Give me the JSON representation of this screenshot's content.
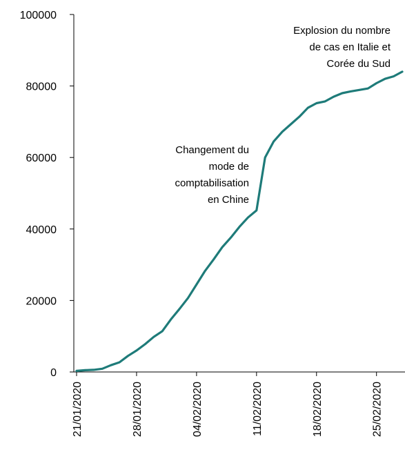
{
  "chart_data": {
    "type": "line",
    "title": "",
    "xlabel": "",
    "ylabel": "",
    "ylim": [
      0,
      100000
    ],
    "y_ticks": [
      0,
      20000,
      40000,
      60000,
      80000,
      100000
    ],
    "x_ticks": [
      "21/01/2020",
      "28/01/2020",
      "04/02/2020",
      "11/02/2020",
      "18/02/2020",
      "25/02/2020"
    ],
    "grid": false,
    "line_color": "#1e7b79",
    "series": [
      {
        "x": [
          "21/01/2020",
          "22/01/2020",
          "23/01/2020",
          "24/01/2020",
          "25/01/2020",
          "26/01/2020",
          "27/01/2020",
          "28/01/2020",
          "29/01/2020",
          "30/01/2020",
          "31/01/2020",
          "01/02/2020",
          "02/02/2020",
          "03/02/2020",
          "04/02/2020",
          "05/02/2020",
          "06/02/2020",
          "07/02/2020",
          "08/02/2020",
          "09/02/2020",
          "10/02/2020",
          "11/02/2020",
          "12/02/2020",
          "13/02/2020",
          "14/02/2020",
          "15/02/2020",
          "16/02/2020",
          "17/02/2020",
          "18/02/2020",
          "19/02/2020",
          "20/02/2020",
          "21/02/2020",
          "22/02/2020",
          "23/02/2020",
          "24/02/2020",
          "25/02/2020",
          "26/02/2020",
          "27/02/2020",
          "28/02/2020"
        ],
        "values": [
          300,
          500,
          600,
          900,
          1900,
          2700,
          4500,
          6000,
          7800,
          9800,
          11400,
          14700,
          17600,
          20700,
          24500,
          28300,
          31500,
          34900,
          37600,
          40600,
          43200,
          45200,
          60000,
          64500,
          67200,
          69300,
          71400,
          73900,
          75200,
          75700,
          77000,
          78000,
          78500,
          78900,
          79300,
          80800,
          82000,
          82700,
          84000
        ]
      }
    ],
    "annotations": [
      {
        "lines": [
          "Changement du",
          "mode de",
          "comptabilisation",
          "en Chine"
        ]
      },
      {
        "lines": [
          "Explosion du nombre",
          "de cas en Italie et",
          "Corée du Sud"
        ]
      }
    ]
  }
}
